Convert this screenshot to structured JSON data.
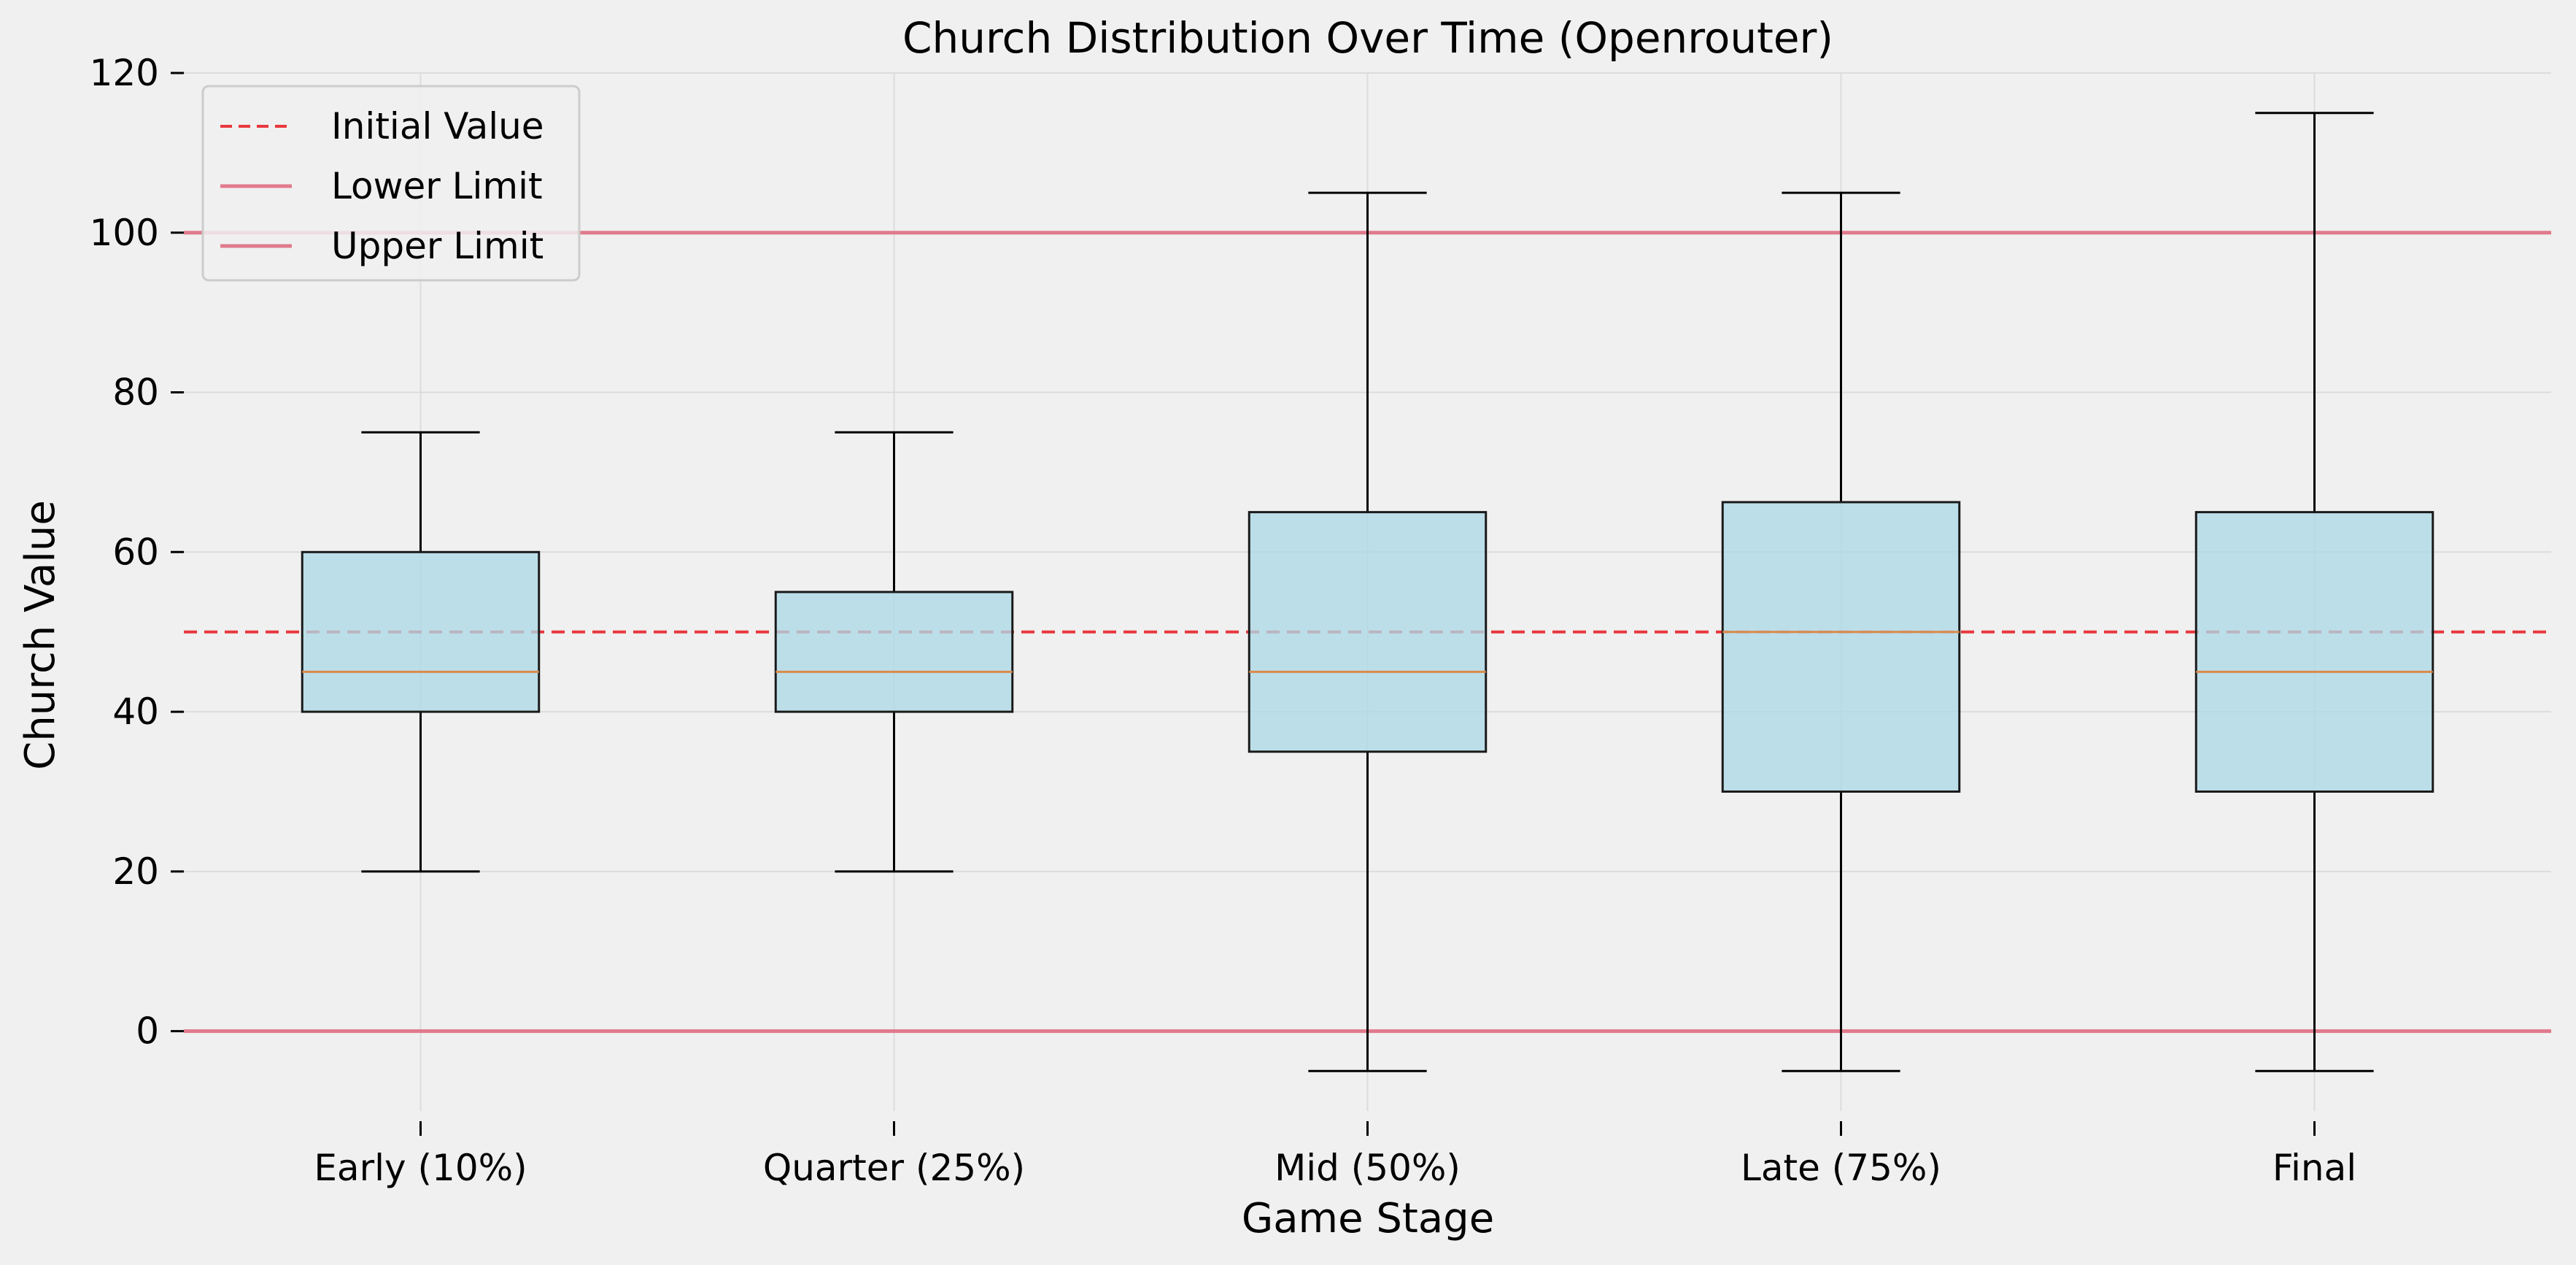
{
  "chart_data": {
    "type": "box",
    "title": "Church Distribution Over Time (Openrouter)",
    "xlabel": "Game Stage",
    "ylabel": "Church Value",
    "ylim": [
      -10,
      120
    ],
    "yticks": [
      0,
      20,
      40,
      60,
      80,
      100,
      120
    ],
    "grid": true,
    "legend_position": "top-left",
    "categories": [
      "Early (10%)",
      "Quarter (25%)",
      "Mid (50%)",
      "Late (75%)",
      "Final"
    ],
    "boxes": [
      {
        "whisker_low": 20,
        "q1": 40,
        "median": 45,
        "q3": 60,
        "whisker_high": 75
      },
      {
        "whisker_low": 20,
        "q1": 40,
        "median": 45,
        "q3": 55,
        "whisker_high": 75
      },
      {
        "whisker_low": -5,
        "q1": 35,
        "median": 45,
        "q3": 65,
        "whisker_high": 105
      },
      {
        "whisker_low": -5,
        "q1": 30,
        "median": 50,
        "q3": 66.25,
        "whisker_high": 105
      },
      {
        "whisker_low": -5,
        "q1": 30,
        "median": 45,
        "q3": 65,
        "whisker_high": 115
      }
    ],
    "reference_lines": [
      {
        "name": "Initial Value",
        "value": 50,
        "style": "dashed",
        "color": "#e8383d"
      },
      {
        "name": "Lower Limit",
        "value": 0,
        "style": "solid",
        "color": "#e07a8c"
      },
      {
        "name": "Upper Limit",
        "value": 100,
        "style": "solid",
        "color": "#e07a8c"
      }
    ],
    "colors": {
      "box_fill": "#add8e6",
      "box_edge": "#1a1a1a",
      "median": "#d98a4a",
      "grid": "#dcdcdc",
      "background": "#f0f0f0"
    }
  }
}
